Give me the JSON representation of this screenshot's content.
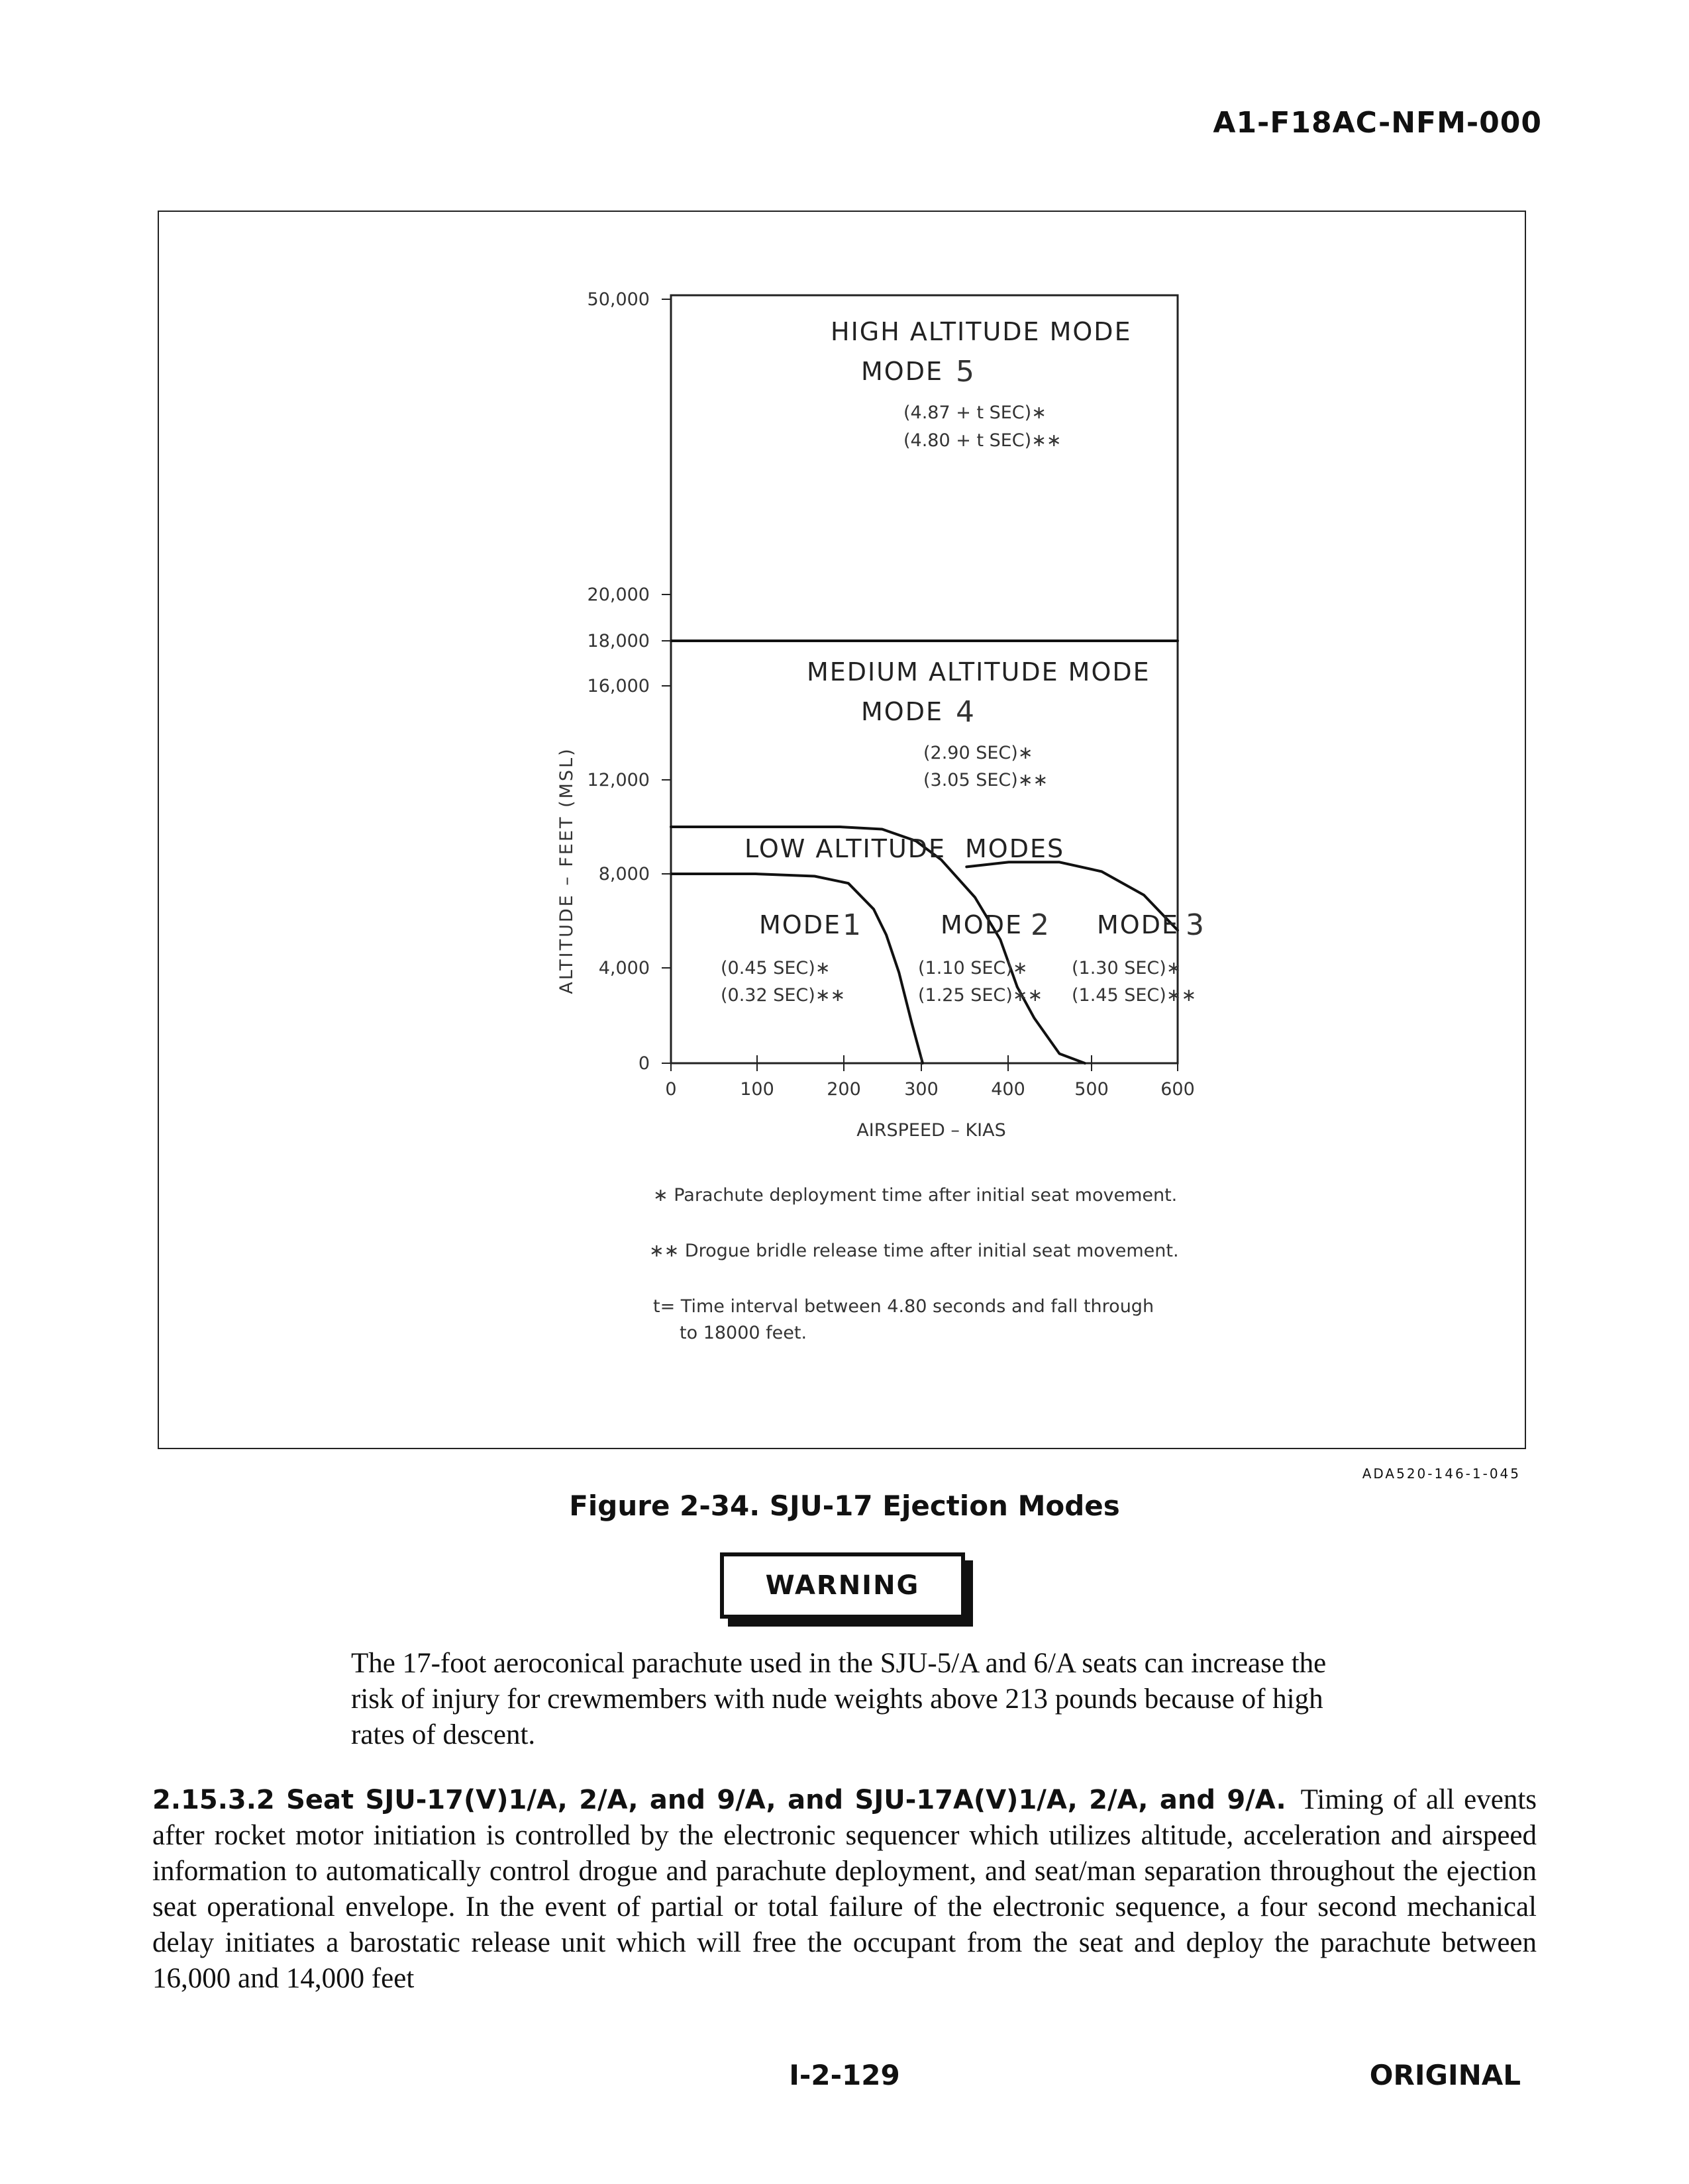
{
  "header": {
    "doc_id": "A1-F18AC-NFM-000"
  },
  "figure": {
    "code": "ADA520-146-1-045",
    "caption": "Figure 2-34. SJU-17 Ejection Modes"
  },
  "chart_data": {
    "type": "line",
    "title": "",
    "xlabel": "AIRSPEED – KIAS",
    "ylabel": "ALTITUDE – FEET (MSL)",
    "x_ticks": [
      "0",
      "100",
      "200",
      "300",
      "400",
      "500",
      "600"
    ],
    "y_ticks": [
      "0",
      "4,000",
      "8,000",
      "12,000",
      "16,000",
      "18,000",
      "20,000",
      "50,000"
    ],
    "xlim": [
      0,
      600
    ],
    "boundaries": [
      {
        "name": "18,000 ft high/medium boundary",
        "x": [
          0,
          600
        ],
        "y": [
          18000,
          18000
        ]
      },
      {
        "name": "medium/low boundary",
        "x": [
          0,
          100,
          200,
          250,
          290,
          320,
          360,
          390,
          410
        ],
        "y": [
          10000,
          10000,
          10000,
          9900,
          9400,
          8600,
          7000,
          5200,
          3200
        ]
      },
      {
        "name": "low boundary continuation",
        "x": [
          410,
          430,
          460,
          490
        ],
        "y": [
          3200,
          1900,
          400,
          0
        ]
      },
      {
        "name": "mode 1/2 boundary",
        "x": [
          0,
          100,
          170,
          210,
          240,
          255,
          270,
          285,
          298
        ],
        "y": [
          8000,
          8000,
          7900,
          7600,
          6500,
          5400,
          3800,
          1700,
          0
        ]
      },
      {
        "name": "mode 2/3 boundary",
        "x": [
          350,
          400,
          460,
          510,
          560,
          600
        ],
        "y": [
          8300,
          8500,
          8500,
          8100,
          7100,
          5600
        ]
      }
    ],
    "regions": [
      {
        "title": "HIGH ALTITUDE MODE",
        "mode": "MODE",
        "mode_num": "5",
        "times": [
          "(4.87 + t SEC)∗",
          "(4.80 + t SEC)∗∗"
        ]
      },
      {
        "title": "MEDIUM ALTITUDE MODE",
        "mode": "MODE",
        "mode_num": "4",
        "times": [
          "(2.90  SEC)∗",
          "(3.05  SEC)∗∗"
        ]
      },
      {
        "title": "LOW ALTITUDE",
        "title2": "MODES"
      },
      {
        "mode": "MODE",
        "mode_num": "1",
        "times": [
          "(0.45 SEC)∗",
          "(0.32 SEC)∗∗"
        ]
      },
      {
        "mode": "MODE",
        "mode_num": "2",
        "times": [
          "(1.10 SEC)∗",
          "(1.25 SEC)∗∗"
        ]
      },
      {
        "mode": "MODE",
        "mode_num": "3",
        "times": [
          "(1.30 SEC)∗",
          "(1.45 SEC)∗∗"
        ]
      }
    ],
    "notes": [
      "∗ Parachute deployment time after initial seat movement.",
      "∗∗ Drogue bridle release time after initial seat movement.",
      "t= Time interval between 4.80 seconds and fall through",
      "to 18000 feet."
    ]
  },
  "warning": {
    "label": "WARNING",
    "text": "The 17-foot aeroconical parachute used in the SJU-5/A and 6/A seats can increase the risk of injury for crewmembers with nude weights above 213 pounds because of high rates of descent."
  },
  "section": {
    "heading": "2.15.3.2 Seat SJU-17(V)1/A, 2/A, and 9/A, and SJU-17A(V)1/A, 2/A, and 9/A.",
    "body": "Timing of all events after rocket motor initiation is controlled by the electronic sequencer which utilizes altitude, acceleration and airspeed information to automatically control drogue and parachute deployment, and seat/man separation throughout the ejection seat operational envelope. In the event of partial or total failure of the electronic sequence, a four second mechanical delay initiates a barostatic release unit which will free the occupant from the seat and deploy the parachute between 16,000 and 14,000 feet"
  },
  "footer": {
    "page_number": "I-2-129",
    "status": "ORIGINAL"
  }
}
